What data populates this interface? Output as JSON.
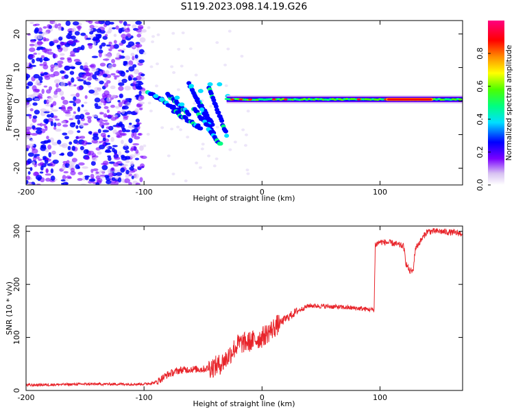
{
  "figure_title": "S119.2023.098.14.19.G26",
  "chart_data": [
    {
      "type": "heatmap",
      "xlabel": "Height of straight line (km)",
      "ylabel": "Frequency (Hz)",
      "xlim": [
        -200,
        170
      ],
      "ylim": [
        -25,
        24
      ],
      "xticks": [
        -200,
        -100,
        0,
        100
      ],
      "yticks": [
        20,
        10,
        0,
        -10,
        -20
      ],
      "colorbar": {
        "label": "Normalized spectral amplitude",
        "range": [
          0.0,
          1.0
        ],
        "ticks": [
          "0.0",
          "0.2",
          "0.4",
          "0.6",
          "0.8"
        ],
        "tick_values": [
          0.0,
          0.2,
          0.4,
          0.6,
          0.8
        ]
      },
      "features": [
        {
          "name": "noise",
          "x": [
            -200,
            -100
          ],
          "freq": [
            -25,
            24
          ],
          "amplitude": 0.1
        },
        {
          "name": "streaks",
          "x": [
            -97,
            -30
          ],
          "freq": [
            -13,
            6
          ],
          "amplitude": 0.35
        },
        {
          "name": "tone",
          "x": [
            -30,
            170
          ],
          "freq_center": 0.5,
          "amplitude": 0.5
        },
        {
          "name": "peak",
          "x": [
            105,
            145
          ],
          "freq_center": 0.5,
          "amplitude": 0.95
        }
      ]
    },
    {
      "type": "line",
      "xlabel": "Height of straight line (km)",
      "ylabel": "SNR (10 * v/v)",
      "xlim": [
        -200,
        170
      ],
      "ylim": [
        0,
        310
      ],
      "xticks": [
        -200,
        -100,
        0,
        100
      ],
      "yticks": [
        0,
        100,
        200,
        300
      ],
      "series": [
        {
          "color": "#e8242a",
          "x": [
            -200,
            -150,
            -100,
            -90,
            -80,
            -70,
            -60,
            -50,
            -40,
            -35,
            -30,
            -25,
            -20,
            -10,
            0,
            10,
            20,
            30,
            40,
            60,
            80,
            95,
            96,
            100,
            110,
            120,
            122,
            125,
            128,
            130,
            140,
            150,
            160,
            170
          ],
          "values": [
            10,
            12,
            12,
            15,
            30,
            38,
            40,
            40,
            45,
            50,
            60,
            75,
            88,
            92,
            100,
            118,
            135,
            150,
            160,
            158,
            155,
            152,
            275,
            280,
            278,
            272,
            240,
            225,
            225,
            268,
            300,
            300,
            298,
            296
          ]
        }
      ]
    }
  ]
}
